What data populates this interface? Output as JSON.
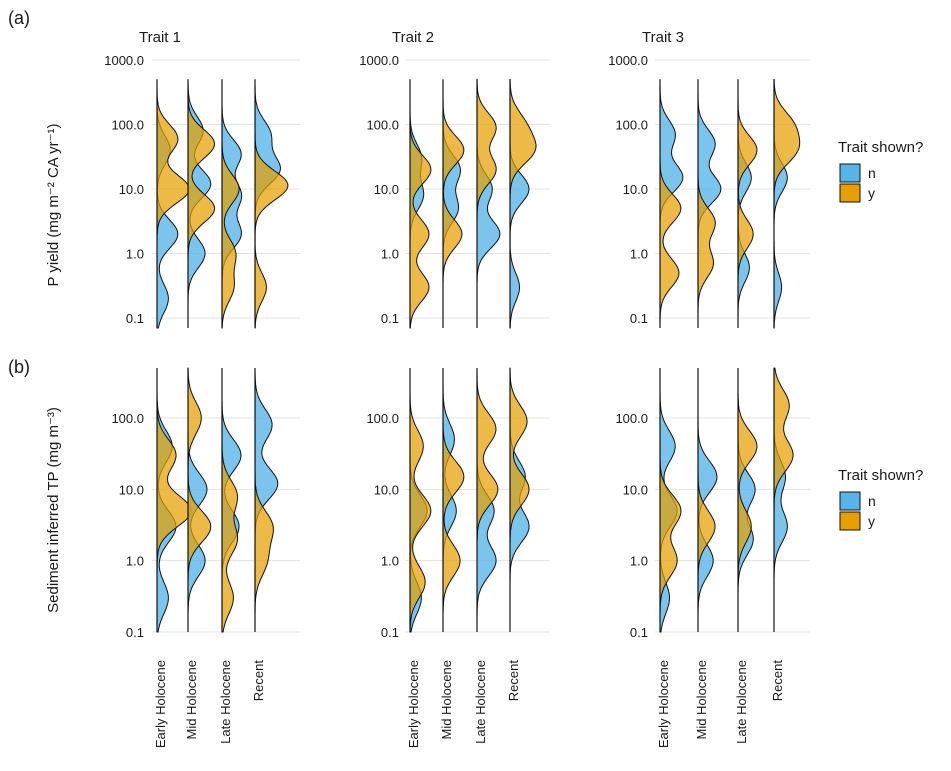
{
  "colors": {
    "n": "#56B4E9",
    "y": "#E69F00"
  },
  "panel_labels": [
    "(a)",
    "(b)"
  ],
  "legend": {
    "title": "Trait shown?",
    "keys": [
      "n",
      "y"
    ]
  },
  "chart_data": [
    {
      "type": "ridgeline-density",
      "panel": "(a)",
      "ylabel": "P yield (mg m⁻² CA yr⁻¹)",
      "y_scale": "log10",
      "ylim": [
        0.07,
        500
      ],
      "y_ticks": [
        "0.1",
        "1.0",
        "10.0",
        "100.0",
        "1000.0"
      ],
      "y_tick_values": [
        0.1,
        1,
        10,
        100,
        1000
      ],
      "periods": [
        "Early Holocene",
        "Mid Holocene",
        "Late Holocene",
        "Recent"
      ],
      "facets": [
        {
          "title": "Trait 1",
          "groups": [
            {
              "period": "Early Holocene",
              "n": [
                [
                  0.2,
                  0.3
                ],
                [
                  2,
                  0.55
                ],
                [
                  40,
                  0.35
                ]
              ],
              "y": [
                [
                  10,
                  0.85
                ],
                [
                  60,
                  0.55
                ]
              ]
            },
            {
              "period": "Mid Holocene",
              "n": [
                [
                  1,
                  0.45
                ],
                [
                  12,
                  0.6
                ],
                [
                  80,
                  0.4
                ]
              ],
              "y": [
                [
                  5,
                  0.7
                ],
                [
                  50,
                  0.7
                ]
              ]
            },
            {
              "period": "Late Holocene",
              "n": [
                [
                  2,
                  0.5
                ],
                [
                  8,
                  0.5
                ],
                [
                  35,
                  0.5
                ]
              ],
              "y": [
                [
                  0.3,
                  0.3
                ],
                [
                  1,
                  0.35
                ],
                [
                  10,
                  0.45
                ]
              ]
            },
            {
              "period": "Recent",
              "n": [
                [
                  20,
                  0.65
                ],
                [
                  70,
                  0.4
                ]
              ],
              "y": [
                [
                  0.3,
                  0.3
                ],
                [
                  10,
                  0.28
                ],
                [
                  12,
                  0.6
                ]
              ]
            }
          ]
        },
        {
          "title": "Trait 2",
          "groups": [
            {
              "period": "Early Holocene",
              "n": [
                [
                  8,
                  0.35
                ],
                [
                  30,
                  0.3
                ]
              ],
              "y": [
                [
                  0.3,
                  0.5
                ],
                [
                  2,
                  0.5
                ],
                [
                  20,
                  0.55
                ]
              ]
            },
            {
              "period": "Mid Holocene",
              "n": [
                [
                  5,
                  0.4
                ],
                [
                  20,
                  0.45
                ]
              ],
              "y": [
                [
                  2,
                  0.5
                ],
                [
                  40,
                  0.55
                ]
              ]
            },
            {
              "period": "Late Holocene",
              "n": [
                [
                  2,
                  0.6
                ],
                [
                  10,
                  0.4
                ]
              ],
              "y": [
                [
                  20,
                  0.5
                ],
                [
                  90,
                  0.5
                ]
              ]
            },
            {
              "period": "Recent",
              "n": [
                [
                  0.3,
                  0.25
                ],
                [
                  10,
                  0.5
                ]
              ],
              "y": [
                [
                  40,
                  0.6
                ],
                [
                  100,
                  0.35
                ]
              ]
            }
          ]
        },
        {
          "title": "Trait 3",
          "groups": [
            {
              "period": "Early Holocene",
              "n": [
                [
                  15,
                  0.6
                ],
                [
                  70,
                  0.4
                ]
              ],
              "y": [
                [
                  0.5,
                  0.5
                ],
                [
                  5,
                  0.55
                ]
              ]
            },
            {
              "period": "Mid Holocene",
              "n": [
                [
                  10,
                  0.6
                ],
                [
                  50,
                  0.45
                ]
              ],
              "y": [
                [
                  0.7,
                  0.4
                ],
                [
                  3,
                  0.45
                ]
              ]
            },
            {
              "period": "Late Holocene",
              "n": [
                [
                  0.6,
                  0.3
                ],
                [
                  15,
                  0.35
                ]
              ],
              "y": [
                [
                  2,
                  0.4
                ],
                [
                  40,
                  0.5
                ]
              ]
            },
            {
              "period": "Recent",
              "n": [
                [
                  0.3,
                  0.2
                ],
                [
                  15,
                  0.35
                ]
              ],
              "y": [
                [
                  40,
                  0.55
                ],
                [
                  100,
                  0.45
                ]
              ]
            }
          ]
        }
      ]
    },
    {
      "type": "ridgeline-density",
      "panel": "(b)",
      "ylabel": "Sediment inferred TP (mg m⁻³)",
      "y_scale": "log10",
      "ylim": [
        0.1,
        500
      ],
      "y_ticks": [
        "0.1",
        "1.0",
        "10.0",
        "100.0"
      ],
      "y_tick_values": [
        0.1,
        1,
        10,
        100
      ],
      "periods": [
        "Early Holocene",
        "Mid Holocene",
        "Late Holocene",
        "Recent"
      ],
      "facets": [
        {
          "title": "",
          "groups": [
            {
              "period": "Early Holocene",
              "n": [
                [
                  0.3,
                  0.3
                ],
                [
                  3,
                  0.5
                ],
                [
                  40,
                  0.4
                ]
              ],
              "y": [
                [
                  5,
                  0.9
                ],
                [
                  30,
                  0.5
                ]
              ]
            },
            {
              "period": "Mid Holocene",
              "n": [
                [
                  1,
                  0.45
                ],
                [
                  10,
                  0.5
                ]
              ],
              "y": [
                [
                  3,
                  0.6
                ],
                [
                  100,
                  0.35
                ]
              ]
            },
            {
              "period": "Late Holocene",
              "n": [
                [
                  3,
                  0.45
                ],
                [
                  30,
                  0.5
                ]
              ],
              "y": [
                [
                  0.3,
                  0.3
                ],
                [
                  2,
                  0.4
                ],
                [
                  8,
                  0.4
                ]
              ]
            },
            {
              "period": "Recent",
              "n": [
                [
                  12,
                  0.6
                ],
                [
                  80,
                  0.45
                ]
              ],
              "y": [
                [
                  1,
                  0.3
                ],
                [
                  3,
                  0.45
                ]
              ]
            }
          ]
        },
        {
          "title": "",
          "groups": [
            {
              "period": "Early Holocene",
              "n": [
                [
                  0.3,
                  0.3
                ],
                [
                  5,
                  0.45
                ]
              ],
              "y": [
                [
                  0.5,
                  0.4
                ],
                [
                  5,
                  0.55
                ],
                [
                  40,
                  0.35
                ]
              ]
            },
            {
              "period": "Mid Holocene",
              "n": [
                [
                  5,
                  0.35
                ],
                [
                  50,
                  0.3
                ]
              ],
              "y": [
                [
                  1,
                  0.45
                ],
                [
                  15,
                  0.55
                ]
              ]
            },
            {
              "period": "Late Holocene",
              "n": [
                [
                  1,
                  0.5
                ],
                [
                  5,
                  0.45
                ]
              ],
              "y": [
                [
                  10,
                  0.55
                ],
                [
                  70,
                  0.5
                ]
              ]
            },
            {
              "period": "Recent",
              "n": [
                [
                  3,
                  0.5
                ],
                [
                  15,
                  0.4
                ]
              ],
              "y": [
                [
                  10,
                  0.5
                ],
                [
                  90,
                  0.45
                ]
              ]
            }
          ]
        },
        {
          "title": "",
          "groups": [
            {
              "period": "Early Holocene",
              "n": [
                [
                  0.3,
                  0.25
                ],
                [
                  5,
                  0.45
                ],
                [
                  40,
                  0.4
                ]
              ],
              "y": [
                [
                  1,
                  0.45
                ],
                [
                  5,
                  0.55
                ]
              ]
            },
            {
              "period": "Mid Holocene",
              "n": [
                [
                  1,
                  0.4
                ],
                [
                  15,
                  0.5
                ]
              ],
              "y": [
                [
                  3,
                  0.45
                ]
              ]
            },
            {
              "period": "Late Holocene",
              "n": [
                [
                  2,
                  0.4
                ],
                [
                  10,
                  0.45
                ]
              ],
              "y": [
                [
                  3,
                  0.35
                ],
                [
                  40,
                  0.5
                ]
              ]
            },
            {
              "period": "Recent",
              "n": [
                [
                  3,
                  0.35
                ],
                [
                  15,
                  0.3
                ]
              ],
              "y": [
                [
                  30,
                  0.5
                ],
                [
                  150,
                  0.4
                ]
              ]
            }
          ]
        }
      ]
    }
  ]
}
